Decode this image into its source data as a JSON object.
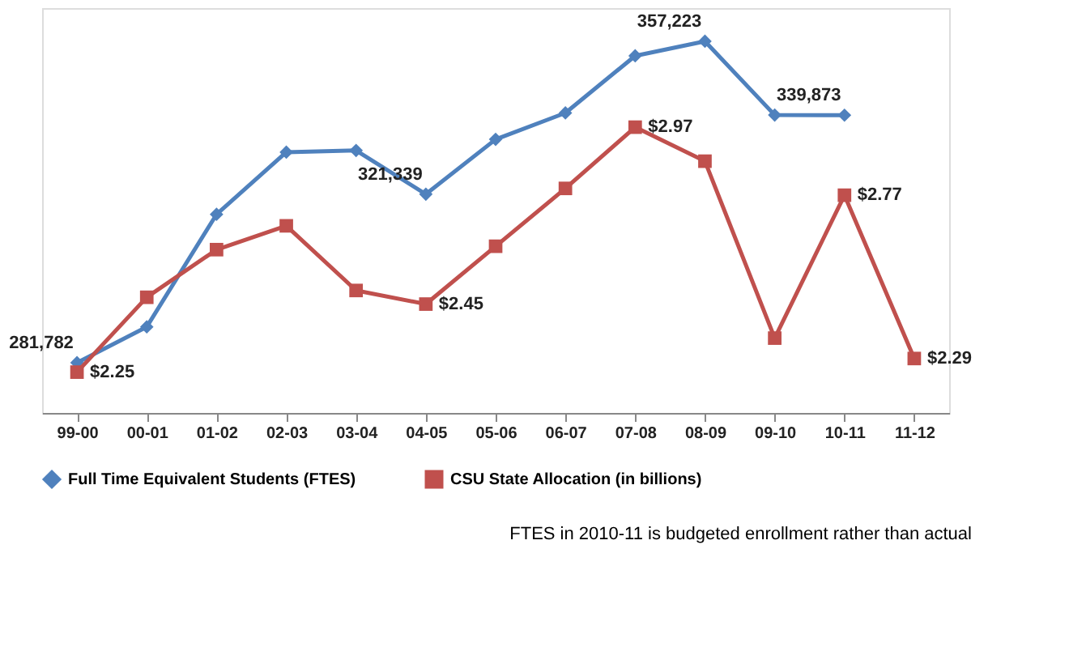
{
  "chart_data": {
    "type": "line",
    "categories": [
      "99-00",
      "00-01",
      "01-02",
      "02-03",
      "03-04",
      "04-05",
      "05-06",
      "06-07",
      "07-08",
      "08-09",
      "09-10",
      "10-11",
      "11-12"
    ],
    "series": [
      {
        "name": "Full Time Equivalent Students (FTES)",
        "color": "#4f81bd",
        "marker": "diamond",
        "values": [
          281782,
          290200,
          316600,
          331200,
          331600,
          321339,
          334200,
          340400,
          353800,
          357223,
          339900,
          339873,
          null
        ],
        "value_labels": [
          "281,782",
          null,
          null,
          null,
          null,
          "321,339",
          null,
          null,
          null,
          "357,223",
          null,
          "339,873",
          null
        ]
      },
      {
        "name": "CSU State Allocation (in billions)",
        "color": "#c0504d",
        "marker": "square",
        "axis": "y2",
        "values": [
          2.25,
          2.47,
          2.61,
          2.68,
          2.49,
          2.45,
          2.62,
          2.79,
          2.97,
          2.87,
          2.35,
          2.77,
          2.29
        ],
        "value_labels": [
          "$2.25",
          null,
          null,
          null,
          null,
          "$2.45",
          null,
          null,
          "$2.97",
          null,
          null,
          "$2.77",
          "$2.29"
        ]
      }
    ],
    "ylim": [
      270000,
      365000
    ],
    "y2lim": [
      2.13,
      3.32
    ],
    "tick_labels": "x",
    "grid": false,
    "legend": "bottom",
    "annotations": [
      "FTES in 2010-11 is budgeted enrollment rather than actual"
    ]
  }
}
